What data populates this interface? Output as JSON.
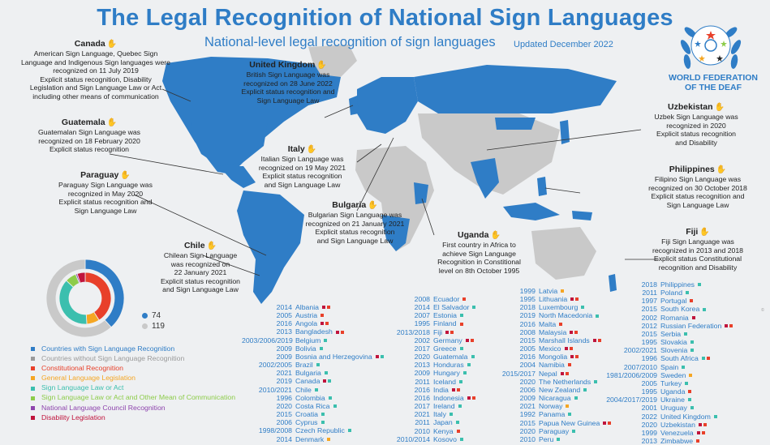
{
  "title": "The Legal Recognition of National Sign Languages",
  "subtitle": "National-level legal recognition of sign languages",
  "updated": "Updated December 2022",
  "organization": "WORLD FEDERATION OF THE DEAF",
  "colors": {
    "recognized": "#2f7dc6",
    "not_recognized": "#c9c9c9",
    "constitutional": "#e8402a",
    "general_law": "#f5a623",
    "sl_law": "#3bbfae",
    "sl_law_other": "#8dcc4a",
    "council": "#8e44ad",
    "disability": "#c0143c"
  },
  "callouts": {
    "canada": {
      "name": "Canada",
      "lines": [
        "American Sign Language, Quebec Sign",
        "Language and Indigenous Sign languages were",
        "recognized on 11 July 2019",
        "Explicit status recognition, Disability",
        "Legislation and Sign Language Law or Act",
        "including other means of communication"
      ]
    },
    "uk": {
      "name": "United Kingdom",
      "lines": [
        "British Sign Language was",
        "recognized on 28 June 2022",
        "Explicit status recognition and",
        "Sign Language Law"
      ]
    },
    "uzbekistan": {
      "name": "Uzbekistan",
      "lines": [
        "Uzbek Sign Language was",
        "recognized in 2020",
        "Explicit status recognition",
        "and Disability"
      ]
    },
    "guatemala": {
      "name": "Guatemala",
      "lines": [
        "Guatemalan Sign Language was",
        "recognized on 18 February 2020",
        "Explicit status recognition"
      ]
    },
    "italy": {
      "name": "Italy",
      "lines": [
        "Italian Sign Language was",
        "recognized on 19 May 2021",
        "Explicit status recognition",
        "and Sign Language Law"
      ]
    },
    "philippines": {
      "name": "Philippines",
      "lines": [
        "Filipino Sign Language was",
        "recognized on 30 October 2018",
        "Explicit status recognition and",
        "Sign Language Law"
      ]
    },
    "paraguay": {
      "name": "Paraguay",
      "lines": [
        "Paraguay Sign Language was",
        "recognized in May 2020",
        "Explicit status recognition and",
        "Sign Language Law"
      ]
    },
    "bulgaria": {
      "name": "Bulgaria",
      "lines": [
        "Bulgarian Sign Language was",
        "recognized on 21 January 2021",
        "Explicit status recognition",
        "and Sign Language Law"
      ]
    },
    "uganda": {
      "name": "Uganda",
      "lines": [
        "First country in Africa to",
        "achieve Sign Language",
        "Recognition in Constitional",
        "level on 8th October 1995"
      ]
    },
    "fiji": {
      "name": "Fiji",
      "lines": [
        "Fiji Sign Language was",
        "recognized in 2013 and 2018",
        "Explicit status Constitutional",
        "recognition and Disability"
      ]
    },
    "chile": {
      "name": "Chile",
      "lines": [
        "Chilean Sign Language",
        "was recognized on",
        "22 January 2021",
        "Explicit status recognition",
        "and Sign Language Law"
      ]
    }
  },
  "donut": {
    "with_recognition": 74,
    "without_recognition": 119,
    "outer": [
      {
        "key": "recognized",
        "value": 74
      },
      {
        "key": "not_recognized",
        "value": 119
      }
    ],
    "inner": [
      {
        "key": "constitutional",
        "value": 41
      },
      {
        "key": "general_law",
        "value": 8
      },
      {
        "key": "sl_law",
        "value": 38
      },
      {
        "key": "sl_law_other",
        "value": 7
      },
      {
        "key": "council",
        "value": 1
      },
      {
        "key": "disability",
        "value": 5
      }
    ]
  },
  "legend": [
    {
      "label": "Countries with Sign Language Recognition",
      "color": "#2f7dc6"
    },
    {
      "label": "Countries without Sign Language Recognition",
      "color": "#9a9a9a"
    },
    {
      "label": "Constitutional Recognition",
      "color": "#e8402a"
    },
    {
      "label": "General Language Legislation",
      "color": "#f5a623"
    },
    {
      "label": "Sign Language Law or Act",
      "color": "#3bbfae"
    },
    {
      "label": "Sign Language Law or Act and Other Mean of Communication",
      "color": "#8dcc4a"
    },
    {
      "label": "National Language Council Recognition",
      "color": "#8e44ad"
    },
    {
      "label": "Disability Legislation",
      "color": "#c0143c"
    }
  ],
  "columns": [
    {
      "rows": [
        {
          "year": "2014",
          "country": "Albania",
          "marks": [
            "disability",
            "constitutional"
          ]
        },
        {
          "year": "2005",
          "country": "Austria",
          "marks": [
            "constitutional"
          ]
        },
        {
          "year": "2016",
          "country": "Angola",
          "marks": [
            "disability",
            "constitutional"
          ]
        },
        {
          "year": "2013",
          "country": "Bangladesh",
          "marks": [
            "disability",
            "constitutional"
          ]
        },
        {
          "year": "2003/2006/2019",
          "country": "Belgium",
          "marks": [
            "sl_law"
          ]
        },
        {
          "year": "2009",
          "country": "Bolivia",
          "marks": [
            "sl_law"
          ]
        },
        {
          "year": "2009",
          "country": "Bosnia and Herzegovina",
          "marks": [
            "disability",
            "sl_law"
          ]
        },
        {
          "year": "2002/2005",
          "country": "Brazil",
          "marks": [
            "sl_law"
          ]
        },
        {
          "year": "2021",
          "country": "Bulgaria",
          "marks": [
            "sl_law"
          ]
        },
        {
          "year": "2019",
          "country": "Canada",
          "marks": [
            "disability",
            "sl_law"
          ]
        },
        {
          "year": "2010/2021",
          "country": "Chile",
          "marks": [
            "sl_law"
          ]
        },
        {
          "year": "1996",
          "country": "Colombia",
          "marks": [
            "sl_law"
          ]
        },
        {
          "year": "2020",
          "country": "Costa Rica",
          "marks": [
            "sl_law"
          ]
        },
        {
          "year": "2015",
          "country": "Croatia",
          "marks": [
            "sl_law"
          ]
        },
        {
          "year": "2006",
          "country": "Cyprus",
          "marks": [
            "sl_law"
          ]
        },
        {
          "year": "1998/2008",
          "country": "Czech Republic",
          "marks": [
            "sl_law"
          ]
        },
        {
          "year": "2014",
          "country": "Denmark",
          "marks": [
            "general_law"
          ]
        }
      ]
    },
    {
      "rows": [
        {
          "year": "2008",
          "country": "Ecuador",
          "marks": [
            "constitutional"
          ]
        },
        {
          "year": "2014",
          "country": "El Salvador",
          "marks": [
            "sl_law"
          ]
        },
        {
          "year": "2007",
          "country": "Estonia",
          "marks": [
            "sl_law"
          ]
        },
        {
          "year": "1995",
          "country": "Finland",
          "marks": [
            "constitutional"
          ]
        },
        {
          "year": "2013/2018",
          "country": "Fiji",
          "marks": [
            "disability",
            "constitutional"
          ]
        },
        {
          "year": "2002",
          "country": "Germany",
          "marks": [
            "disability",
            "constitutional"
          ]
        },
        {
          "year": "2017",
          "country": "Greece",
          "marks": [
            "sl_law"
          ]
        },
        {
          "year": "2020",
          "country": "Guatemala",
          "marks": [
            "sl_law"
          ]
        },
        {
          "year": "2013",
          "country": "Honduras",
          "marks": [
            "sl_law"
          ]
        },
        {
          "year": "2009",
          "country": "Hungary",
          "marks": [
            "sl_law"
          ]
        },
        {
          "year": "2011",
          "country": "Iceland",
          "marks": [
            "sl_law"
          ]
        },
        {
          "year": "2016",
          "country": "India",
          "marks": [
            "disability",
            "constitutional"
          ]
        },
        {
          "year": "2016",
          "country": "Indonesia",
          "marks": [
            "disability",
            "constitutional"
          ]
        },
        {
          "year": "2017",
          "country": "Ireland",
          "marks": [
            "sl_law"
          ]
        },
        {
          "year": "2021",
          "country": "Italy",
          "marks": [
            "sl_law"
          ]
        },
        {
          "year": "2011",
          "country": "Japan",
          "marks": [
            "sl_law"
          ]
        },
        {
          "year": "2010",
          "country": "Kenya",
          "marks": [
            "constitutional"
          ]
        },
        {
          "year": "2010/2014",
          "country": "Kosovo",
          "marks": [
            "sl_law"
          ]
        }
      ]
    },
    {
      "rows": [
        {
          "year": "1999",
          "country": "Latvia",
          "marks": [
            "general_law"
          ]
        },
        {
          "year": "1995",
          "country": "Lithuania",
          "marks": [
            "disability",
            "constitutional"
          ]
        },
        {
          "year": "2018",
          "country": "Luxembourg",
          "marks": [
            "sl_law"
          ]
        },
        {
          "year": "2019",
          "country": "North Macedonia",
          "marks": [
            "sl_law"
          ]
        },
        {
          "year": "2016",
          "country": "Malta",
          "marks": [
            "constitutional"
          ]
        },
        {
          "year": "2008",
          "country": "Malaysia",
          "marks": [
            "disability",
            "constitutional"
          ]
        },
        {
          "year": "2015",
          "country": "Marshall Islands",
          "marks": [
            "disability",
            "constitutional"
          ]
        },
        {
          "year": "2005",
          "country": "Mexico",
          "marks": [
            "disability",
            "constitutional"
          ]
        },
        {
          "year": "2016",
          "country": "Mongolia",
          "marks": [
            "disability",
            "constitutional"
          ]
        },
        {
          "year": "2004",
          "country": "Namibia",
          "marks": [
            "constitutional"
          ]
        },
        {
          "year": "2015/2017",
          "country": "Nepal",
          "marks": [
            "disability",
            "constitutional"
          ]
        },
        {
          "year": "2020",
          "country": "The Netherlands",
          "marks": [
            "sl_law"
          ]
        },
        {
          "year": "2006",
          "country": "New Zealand",
          "marks": [
            "sl_law"
          ]
        },
        {
          "year": "2009",
          "country": "Nicaragua",
          "marks": [
            "sl_law"
          ]
        },
        {
          "year": "2021",
          "country": "Norway",
          "marks": [
            "general_law"
          ]
        },
        {
          "year": "1992",
          "country": "Panama",
          "marks": [
            "sl_law"
          ]
        },
        {
          "year": "2015",
          "country": "Papua New Guinea",
          "marks": [
            "disability",
            "constitutional"
          ]
        },
        {
          "year": "2020",
          "country": "Paraguay",
          "marks": [
            "sl_law"
          ]
        },
        {
          "year": "2010",
          "country": "Peru",
          "marks": [
            "sl_law"
          ]
        }
      ]
    },
    {
      "rows": [
        {
          "year": "2018",
          "country": "Philippines",
          "marks": [
            "sl_law"
          ]
        },
        {
          "year": "2011",
          "country": "Poland",
          "marks": [
            "sl_law"
          ]
        },
        {
          "year": "1997",
          "country": "Portugal",
          "marks": [
            "constitutional"
          ]
        },
        {
          "year": "2015",
          "country": "South Korea",
          "marks": [
            "sl_law"
          ]
        },
        {
          "year": "2002",
          "country": "Romania",
          "marks": [
            "disability"
          ]
        },
        {
          "year": "2012",
          "country": "Russian Federation",
          "marks": [
            "disability",
            "constitutional"
          ]
        },
        {
          "year": "2015",
          "country": "Serbia",
          "marks": [
            "sl_law"
          ]
        },
        {
          "year": "1995",
          "country": "Slovakia",
          "marks": [
            "sl_law"
          ]
        },
        {
          "year": "2002/2021",
          "country": "Slovenia",
          "marks": [
            "sl_law"
          ]
        },
        {
          "year": "1996",
          "country": "South Africa",
          "marks": [
            "sl_law",
            "constitutional"
          ]
        },
        {
          "year": "2007/2010",
          "country": "Spain",
          "marks": [
            "sl_law"
          ]
        },
        {
          "year": "1981/2006/2009",
          "country": "Sweden",
          "marks": [
            "general_law"
          ]
        },
        {
          "year": "2005",
          "country": "Turkey",
          "marks": [
            "sl_law"
          ]
        },
        {
          "year": "1995",
          "country": "Uganda",
          "marks": [
            "constitutional"
          ]
        },
        {
          "year": "2004/2017/2019",
          "country": "Ukraine",
          "marks": [
            "sl_law"
          ]
        },
        {
          "year": "2001",
          "country": "Uruguay",
          "marks": [
            "sl_law"
          ]
        },
        {
          "year": "2022",
          "country": "United Kingdom",
          "marks": [
            "sl_law"
          ]
        },
        {
          "year": "2020",
          "country": "Uzbekistan",
          "marks": [
            "disability",
            "constitutional"
          ]
        },
        {
          "year": "1999",
          "country": "Venezuela",
          "marks": [
            "disability",
            "constitutional"
          ]
        },
        {
          "year": "2013",
          "country": "Zimbabwe",
          "marks": [
            "constitutional"
          ]
        }
      ]
    }
  ]
}
